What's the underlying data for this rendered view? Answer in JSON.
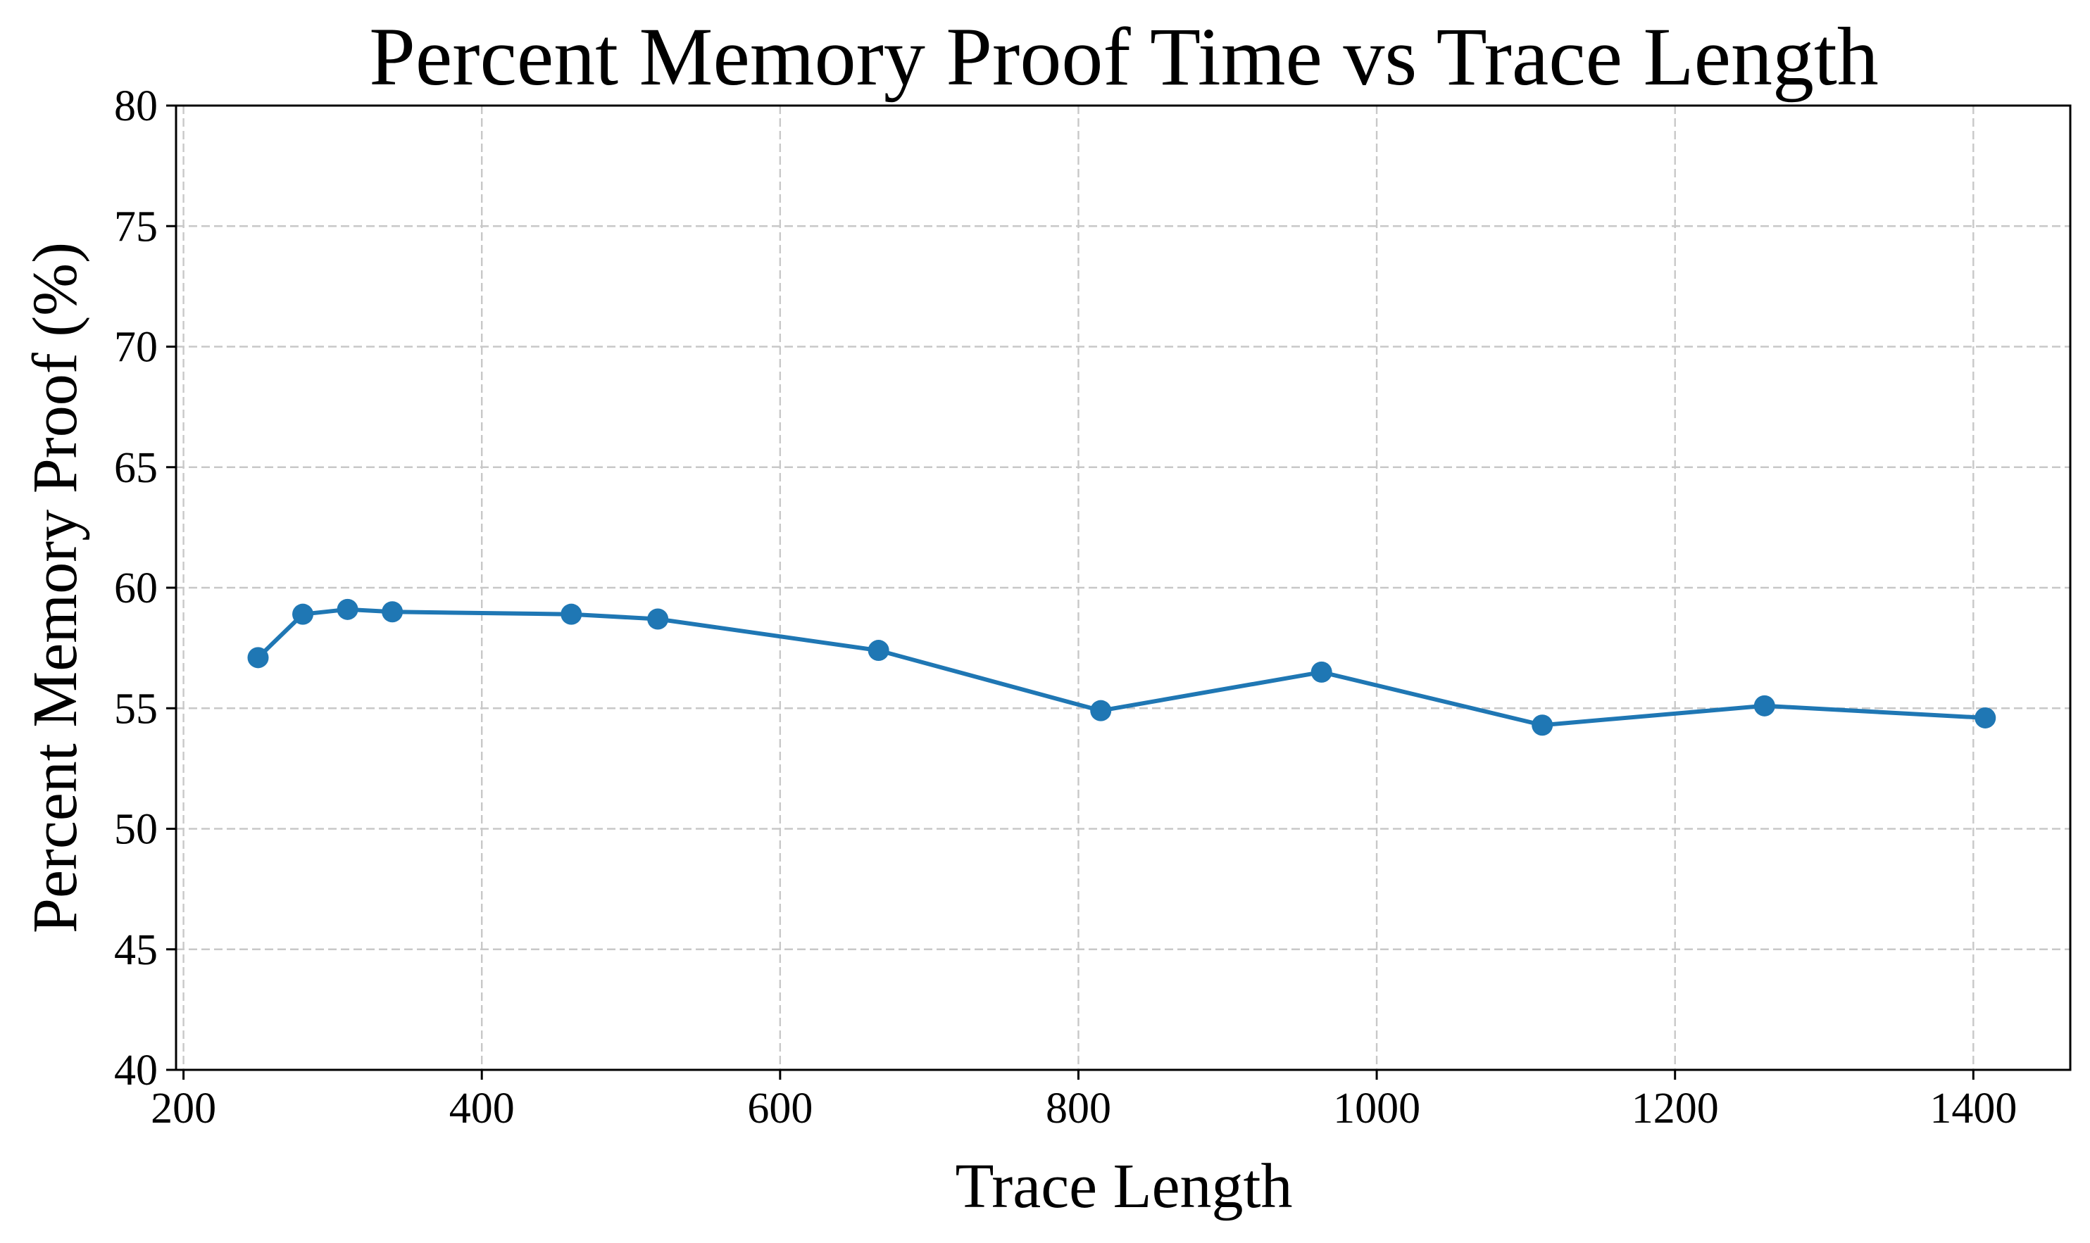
{
  "chart_data": {
    "type": "line",
    "title": "Percent Memory Proof Time vs Trace Length",
    "xlabel": "Trace Length",
    "ylabel": "Percent Memory Proof (%)",
    "xlim": [
      195,
      1465
    ],
    "ylim": [
      40,
      80
    ],
    "xticks": [
      200,
      400,
      600,
      800,
      1000,
      1200,
      1400
    ],
    "yticks": [
      40,
      45,
      50,
      55,
      60,
      65,
      70,
      75,
      80
    ],
    "grid": true,
    "series": [
      {
        "color": "#1f77b4",
        "marker": "circle",
        "x": [
          250,
          280,
          310,
          340,
          460,
          518,
          666,
          815,
          963,
          1111,
          1260,
          1408
        ],
        "y": [
          57.1,
          58.9,
          59.1,
          59.0,
          58.9,
          58.7,
          57.4,
          54.9,
          56.5,
          54.3,
          55.1,
          54.6
        ]
      }
    ]
  }
}
